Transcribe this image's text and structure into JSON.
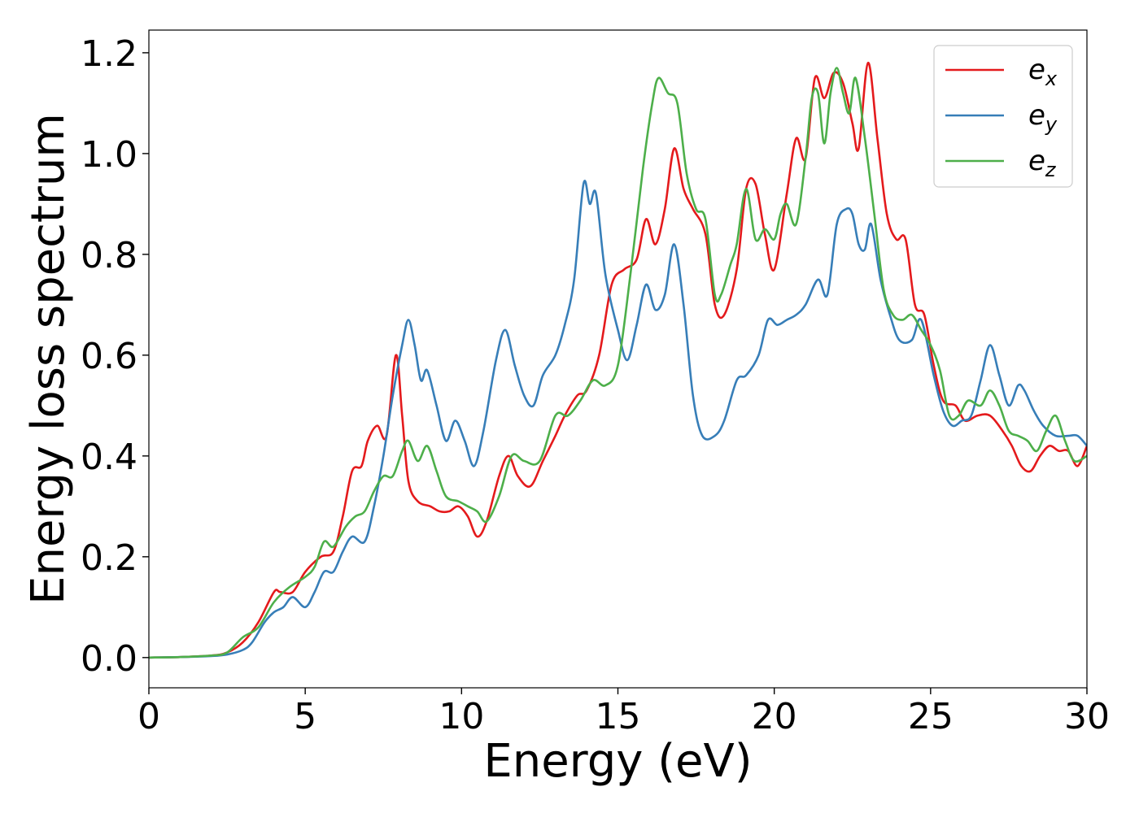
{
  "chart_data": {
    "type": "line",
    "xlabel": "Energy (eV)",
    "ylabel": "Energy loss spectrum",
    "xlim": [
      0,
      30
    ],
    "ylim": [
      -0.06,
      1.245
    ],
    "xticks": [
      0,
      5,
      10,
      15,
      20,
      25,
      30
    ],
    "xtick_labels": [
      "0",
      "5",
      "10",
      "15",
      "20",
      "25",
      "30"
    ],
    "yticks": [
      0.0,
      0.2,
      0.4,
      0.6,
      0.8,
      1.0,
      1.2
    ],
    "ytick_labels": [
      "0.0",
      "0.2",
      "0.4",
      "0.6",
      "0.8",
      "1.0",
      "1.2"
    ],
    "grid": false,
    "legend_position": "top-right",
    "series": [
      {
        "name": "e_x",
        "legend_base": "e",
        "legend_sub": "x",
        "color": "#e41a1c",
        "x": [
          0,
          1,
          2,
          2.5,
          3,
          3.5,
          4,
          4.2,
          4.6,
          5,
          5.5,
          5.9,
          6.2,
          6.5,
          6.8,
          7,
          7.3,
          7.6,
          7.9,
          8.1,
          8.3,
          8.6,
          9,
          9.3,
          9.6,
          9.9,
          10.2,
          10.5,
          10.8,
          11.2,
          11.5,
          11.8,
          12.2,
          12.6,
          13,
          13.3,
          13.7,
          14,
          14.4,
          14.8,
          15.2,
          15.6,
          15.9,
          16.2,
          16.5,
          16.8,
          17.1,
          17.4,
          17.8,
          18.1,
          18.4,
          18.8,
          19.1,
          19.4,
          19.7,
          20,
          20.4,
          20.7,
          21,
          21.3,
          21.6,
          21.9,
          22.2,
          22.5,
          22.7,
          23,
          23.3,
          23.6,
          23.9,
          24.2,
          24.5,
          24.8,
          25.1,
          25.4,
          25.8,
          26.1,
          26.5,
          26.9,
          27.3,
          27.6,
          27.9,
          28.2,
          28.5,
          28.8,
          29.1,
          29.4,
          29.7,
          30
        ],
        "y": [
          0.0,
          0.001,
          0.004,
          0.01,
          0.03,
          0.07,
          0.13,
          0.13,
          0.13,
          0.17,
          0.2,
          0.21,
          0.28,
          0.37,
          0.38,
          0.43,
          0.46,
          0.44,
          0.6,
          0.48,
          0.35,
          0.31,
          0.3,
          0.29,
          0.29,
          0.3,
          0.28,
          0.24,
          0.27,
          0.36,
          0.4,
          0.36,
          0.34,
          0.39,
          0.44,
          0.48,
          0.52,
          0.53,
          0.6,
          0.74,
          0.77,
          0.79,
          0.87,
          0.82,
          0.89,
          1.01,
          0.93,
          0.89,
          0.84,
          0.7,
          0.68,
          0.77,
          0.93,
          0.94,
          0.84,
          0.77,
          0.92,
          1.03,
          0.99,
          1.15,
          1.11,
          1.16,
          1.14,
          1.06,
          1.01,
          1.18,
          1.03,
          0.88,
          0.83,
          0.83,
          0.7,
          0.68,
          0.58,
          0.51,
          0.5,
          0.47,
          0.48,
          0.48,
          0.45,
          0.42,
          0.38,
          0.37,
          0.4,
          0.42,
          0.41,
          0.41,
          0.38,
          0.42
        ]
      },
      {
        "name": "e_y",
        "legend_base": "e",
        "legend_sub": "y",
        "color": "#377eb8",
        "x": [
          0,
          1,
          2,
          2.5,
          3,
          3.3,
          3.7,
          4,
          4.3,
          4.6,
          5,
          5.3,
          5.6,
          5.9,
          6.2,
          6.5,
          6.9,
          7.2,
          7.5,
          7.8,
          8.1,
          8.3,
          8.5,
          8.7,
          8.9,
          9.2,
          9.5,
          9.8,
          10.1,
          10.4,
          10.7,
          11.1,
          11.4,
          11.7,
          12,
          12.3,
          12.6,
          13,
          13.3,
          13.6,
          13.9,
          14.1,
          14.3,
          14.6,
          15,
          15.3,
          15.6,
          15.9,
          16.2,
          16.5,
          16.8,
          17.1,
          17.4,
          17.7,
          18.1,
          18.4,
          18.8,
          19.1,
          19.5,
          19.8,
          20.1,
          20.4,
          20.7,
          21,
          21.4,
          21.7,
          22,
          22.3,
          22.5,
          22.7,
          22.9,
          23.1,
          23.4,
          23.7,
          24,
          24.4,
          24.7,
          25.1,
          25.4,
          25.7,
          26,
          26.3,
          26.6,
          26.9,
          27.2,
          27.5,
          27.8,
          28,
          28.3,
          28.6,
          29,
          29.4,
          29.7,
          30
        ],
        "y": [
          0.0,
          0.001,
          0.003,
          0.006,
          0.015,
          0.03,
          0.07,
          0.09,
          0.1,
          0.12,
          0.1,
          0.13,
          0.17,
          0.17,
          0.21,
          0.24,
          0.23,
          0.3,
          0.4,
          0.52,
          0.62,
          0.67,
          0.62,
          0.55,
          0.57,
          0.5,
          0.43,
          0.47,
          0.43,
          0.38,
          0.45,
          0.59,
          0.65,
          0.58,
          0.52,
          0.5,
          0.56,
          0.6,
          0.66,
          0.75,
          0.94,
          0.9,
          0.92,
          0.76,
          0.65,
          0.59,
          0.66,
          0.74,
          0.69,
          0.72,
          0.82,
          0.7,
          0.52,
          0.44,
          0.44,
          0.47,
          0.55,
          0.56,
          0.6,
          0.67,
          0.66,
          0.67,
          0.68,
          0.7,
          0.75,
          0.72,
          0.86,
          0.89,
          0.88,
          0.82,
          0.81,
          0.86,
          0.75,
          0.68,
          0.63,
          0.63,
          0.67,
          0.56,
          0.49,
          0.46,
          0.47,
          0.48,
          0.55,
          0.62,
          0.56,
          0.5,
          0.54,
          0.53,
          0.49,
          0.46,
          0.44,
          0.44,
          0.44,
          0.42
        ]
      },
      {
        "name": "e_z",
        "legend_base": "e",
        "legend_sub": "z",
        "color": "#4daf4a",
        "x": [
          0,
          1,
          2,
          2.5,
          3,
          3.5,
          4,
          4.5,
          5,
          5.3,
          5.6,
          5.9,
          6.3,
          6.6,
          6.9,
          7.2,
          7.5,
          7.8,
          8.1,
          8.3,
          8.6,
          8.9,
          9.2,
          9.5,
          9.9,
          10.2,
          10.5,
          10.8,
          11.2,
          11.6,
          12,
          12.5,
          13,
          13.4,
          13.8,
          14.2,
          14.6,
          15,
          15.4,
          15.8,
          16.1,
          16.3,
          16.6,
          16.9,
          17.2,
          17.5,
          17.8,
          18.1,
          18.3,
          18.6,
          18.8,
          19.1,
          19.4,
          19.7,
          20,
          20.2,
          20.4,
          20.7,
          21,
          21.2,
          21.4,
          21.6,
          21.8,
          22,
          22.2,
          22.4,
          22.6,
          22.9,
          23.2,
          23.5,
          23.8,
          24.1,
          24.4,
          24.7,
          25,
          25.3,
          25.6,
          25.9,
          26.2,
          26.6,
          26.9,
          27.2,
          27.5,
          27.8,
          28.1,
          28.4,
          28.7,
          29,
          29.3,
          29.6,
          30
        ],
        "y": [
          0.0,
          0.001,
          0.004,
          0.01,
          0.04,
          0.06,
          0.11,
          0.14,
          0.16,
          0.18,
          0.23,
          0.22,
          0.26,
          0.28,
          0.29,
          0.33,
          0.36,
          0.36,
          0.41,
          0.43,
          0.39,
          0.42,
          0.37,
          0.32,
          0.31,
          0.3,
          0.29,
          0.27,
          0.32,
          0.4,
          0.39,
          0.39,
          0.48,
          0.48,
          0.51,
          0.55,
          0.54,
          0.58,
          0.76,
          0.97,
          1.1,
          1.15,
          1.12,
          1.1,
          0.96,
          0.89,
          0.87,
          0.72,
          0.72,
          0.78,
          0.82,
          0.93,
          0.83,
          0.85,
          0.83,
          0.88,
          0.9,
          0.86,
          0.99,
          1.11,
          1.12,
          1.02,
          1.12,
          1.17,
          1.12,
          1.08,
          1.15,
          1.03,
          0.88,
          0.73,
          0.68,
          0.67,
          0.68,
          0.65,
          0.62,
          0.57,
          0.48,
          0.48,
          0.51,
          0.5,
          0.53,
          0.5,
          0.45,
          0.44,
          0.43,
          0.41,
          0.45,
          0.48,
          0.43,
          0.39,
          0.4
        ]
      }
    ]
  }
}
